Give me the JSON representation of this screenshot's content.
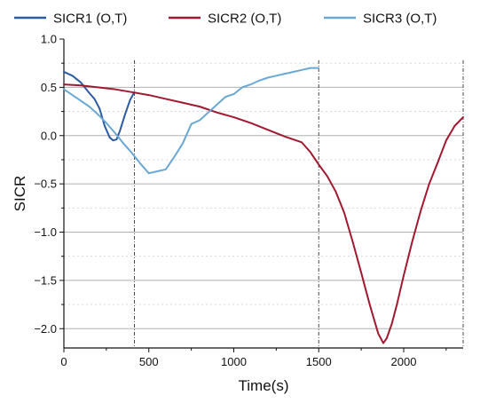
{
  "chart_data": {
    "type": "line",
    "xlabel": "Time(s)",
    "ylabel": "SICR",
    "xlim": [
      0,
      2350
    ],
    "ylim": [
      -2.2,
      1.0
    ],
    "x_ticks": [
      0,
      500,
      1000,
      1500,
      2000
    ],
    "x_tick_labels": [
      "0",
      "500",
      "1000",
      "1500",
      "2000"
    ],
    "y_ticks": [
      1.0,
      0.5,
      0.0,
      -0.5,
      -1.0,
      -1.5,
      -2.0
    ],
    "y_tick_labels": [
      "1.0",
      "0.5",
      "0.0",
      "−0.5",
      "−1.0",
      "−1.5",
      "−2.0"
    ],
    "grid": true,
    "legend_position": "top",
    "reference_lines_x": [
      415,
      1500,
      2350
    ],
    "series": [
      {
        "name": "SICR1 (O,T)",
        "color": "#2c5aa0",
        "x": [
          0,
          50,
          100,
          150,
          180,
          210,
          240,
          270,
          290,
          310,
          330,
          360,
          390,
          415
        ],
        "y": [
          0.66,
          0.62,
          0.55,
          0.44,
          0.38,
          0.28,
          0.1,
          -0.02,
          -0.05,
          -0.04,
          0.05,
          0.22,
          0.37,
          0.45
        ]
      },
      {
        "name": "SICR2 (O,T)",
        "color": "#a0192f",
        "x": [
          0,
          100,
          200,
          300,
          400,
          500,
          600,
          700,
          800,
          900,
          1000,
          1100,
          1200,
          1300,
          1400,
          1450,
          1500,
          1550,
          1600,
          1650,
          1700,
          1750,
          1800,
          1850,
          1880,
          1900,
          1930,
          1960,
          2000,
          2050,
          2100,
          2150,
          2200,
          2250,
          2300,
          2350
        ],
        "y": [
          0.53,
          0.52,
          0.5,
          0.48,
          0.45,
          0.42,
          0.38,
          0.34,
          0.3,
          0.24,
          0.19,
          0.13,
          0.06,
          -0.01,
          -0.07,
          -0.17,
          -0.3,
          -0.42,
          -0.58,
          -0.8,
          -1.1,
          -1.42,
          -1.75,
          -2.05,
          -2.15,
          -2.1,
          -1.95,
          -1.75,
          -1.45,
          -1.1,
          -0.78,
          -0.5,
          -0.28,
          -0.05,
          0.1,
          0.19
        ]
      },
      {
        "name": "SICR3 (O,T)",
        "color": "#6aa8d4",
        "x": [
          0,
          50,
          100,
          150,
          200,
          250,
          300,
          350,
          400,
          450,
          500,
          550,
          600,
          650,
          700,
          750,
          800,
          850,
          900,
          950,
          1000,
          1050,
          1100,
          1150,
          1200,
          1250,
          1300,
          1350,
          1400,
          1450,
          1500
        ],
        "y": [
          0.48,
          0.42,
          0.36,
          0.3,
          0.22,
          0.13,
          0.03,
          -0.08,
          -0.18,
          -0.29,
          -0.39,
          -0.37,
          -0.35,
          -0.22,
          -0.08,
          0.12,
          0.16,
          0.24,
          0.32,
          0.4,
          0.43,
          0.5,
          0.53,
          0.57,
          0.6,
          0.62,
          0.64,
          0.66,
          0.68,
          0.7,
          0.7
        ]
      }
    ]
  }
}
